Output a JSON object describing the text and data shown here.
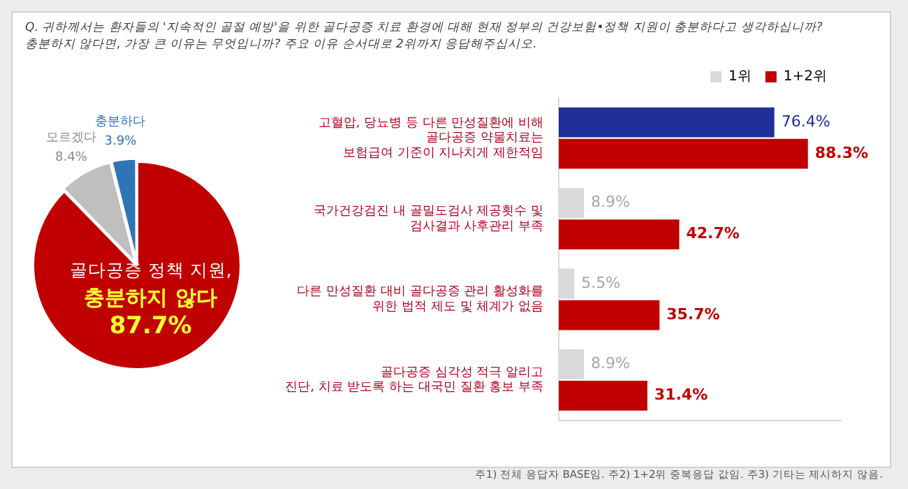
{
  "chart_data": [
    {
      "type": "pie",
      "title": "Q. 귀하께서는 환자들의 '지속적인 골절 예방'을 위한 골다공증 치료 환경에 대해 현재 정부의 건강보험•정책 지원이 충분하다고 생각하십니까?\n충분하지 않다면, 가장 큰 이유는 무엇입니까? 주요 이유 순서대로 2위까지 응답해주십시오.",
      "categories": [
        "골다공증 정책 지원,\n충분하지 않다",
        "모르겠다",
        "충분하다"
      ],
      "values": [
        87.7,
        8.4,
        3.9
      ],
      "value_labels": [
        "87.7%",
        "8.4%",
        "3.9%"
      ],
      "colors": [
        "#c00000",
        "#bfbfbf",
        "#2e75b6"
      ]
    },
    {
      "type": "bar",
      "orientation": "horizontal",
      "categories": [
        "고혈압, 당뇨병 등 다른 만성질환에 비해\n골다공증 약물치료는\n보험급여 기준이 지나치게 제한적임",
        "국가건강검진 내 골밀도검사 제공횟수 및\n검사결과 사후관리 부족",
        "다른 만성질환 대비 골다공증 관리 활성화를\n위한 법적 제도 및 체계가 없음",
        "골다공증 심각성 적극 알리고\n진단, 치료 받도록 하는 대국민 질환 홍보 부족"
      ],
      "series": [
        {
          "name": "1위",
          "color": "#d9d9d9",
          "colors": [
            "#1f2f9a",
            "#d9d9d9",
            "#d9d9d9",
            "#d9d9d9"
          ],
          "values": [
            76.4,
            8.9,
            5.5,
            8.9
          ],
          "value_labels": [
            "76.4%",
            "8.9%",
            "5.5%",
            "8.9%"
          ]
        },
        {
          "name": "1+2위",
          "color": "#c00000",
          "values": [
            88.3,
            42.7,
            35.7,
            31.4
          ],
          "value_labels": [
            "88.3%",
            "42.7%",
            "35.7%",
            "31.4%"
          ]
        }
      ],
      "tick_labels": "y",
      "legend": "top right",
      "annotations": [
        "주1) 전체 응답자 BASE임. 주2) 1+2위 중복응답 값임. 주3) 기타는 제시하지 않음."
      ]
    }
  ]
}
